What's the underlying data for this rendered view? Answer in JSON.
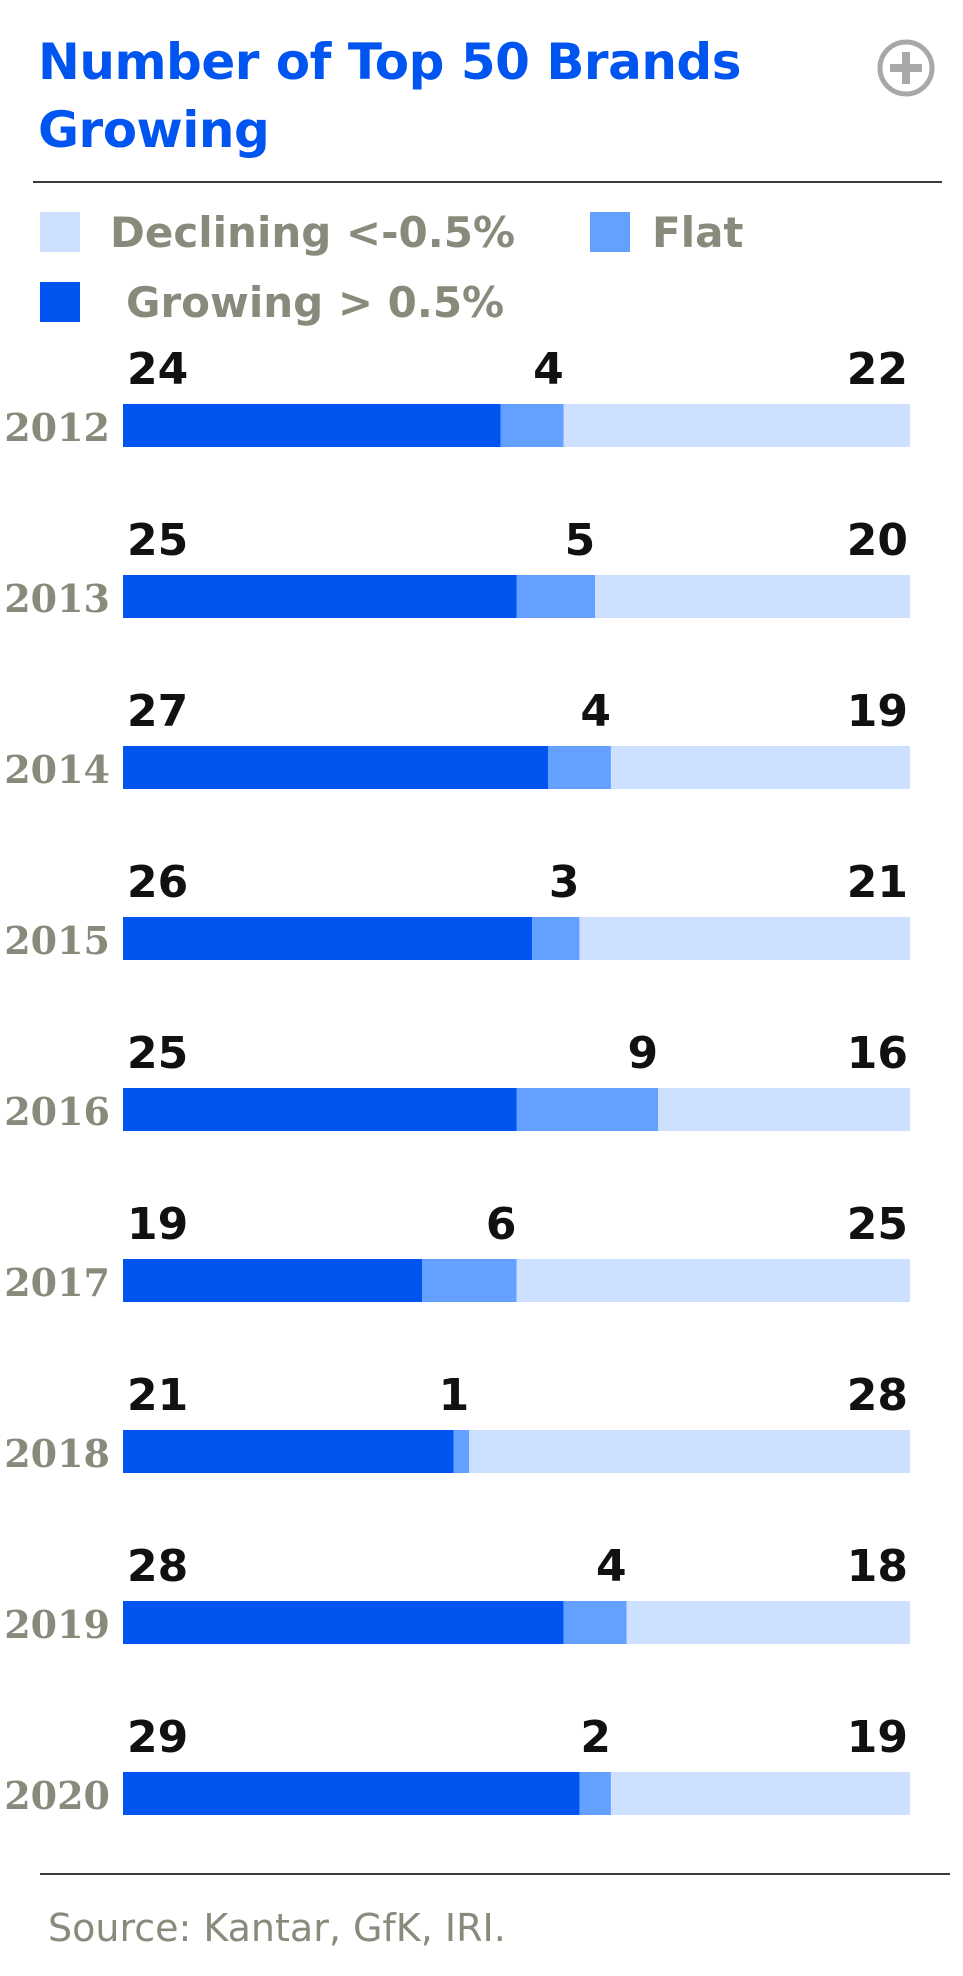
{
  "chart_data": {
    "type": "bar",
    "stacked": true,
    "orientation": "horizontal",
    "title": "Number of Top 50 Brands Growing",
    "categories": [
      "2012",
      "2013",
      "2014",
      "2015",
      "2016",
      "2017",
      "2018",
      "2019",
      "2020"
    ],
    "series": [
      {
        "name": "Growing > 0.5%",
        "values": [
          24,
          25,
          27,
          26,
          25,
          19,
          21,
          28,
          29
        ],
        "color": "#0055f0"
      },
      {
        "name": "Flat",
        "values": [
          4,
          5,
          4,
          3,
          9,
          6,
          1,
          4,
          2
        ],
        "color": "#64a0ff"
      },
      {
        "name": "Declining <-0.5%",
        "values": [
          22,
          20,
          19,
          21,
          16,
          25,
          28,
          18,
          19
        ],
        "color": "#cde0ff"
      }
    ],
    "xlim": [
      0,
      50
    ],
    "grid": false,
    "legend_position": "top",
    "source": "Source: Kantar, GfK, IRI."
  },
  "icons": {
    "expand": "plus-circle-icon"
  }
}
